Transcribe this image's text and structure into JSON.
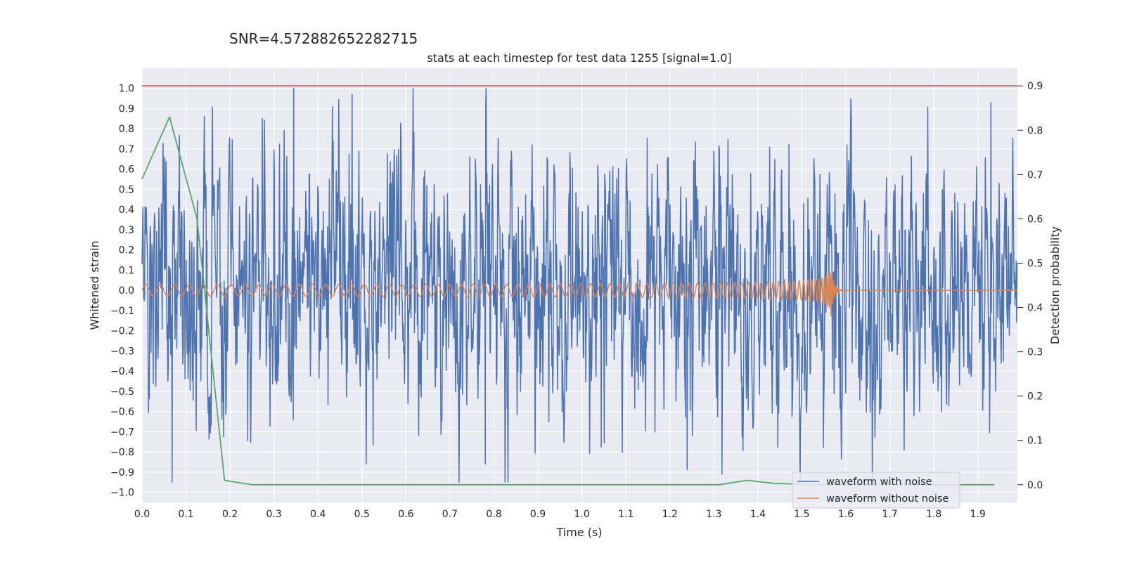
{
  "suptitle": "SNR=4.572882652282715",
  "chart_data": {
    "type": "line",
    "title": "stats at each timestep for test data 1255 [signal=1.0]",
    "xlabel": "Time (s)",
    "ylabel": "Whitened strain",
    "y2label": "Detection probability",
    "xlim": [
      0.0,
      1.99
    ],
    "ylim": [
      -1.05,
      1.1
    ],
    "y2lim": [
      -0.04,
      0.94
    ],
    "xticks": [
      0.0,
      0.1,
      0.2,
      0.3,
      0.4,
      0.5,
      0.6,
      0.7,
      0.8,
      0.9,
      1.0,
      1.1,
      1.2,
      1.3,
      1.4,
      1.5,
      1.6,
      1.7,
      1.8,
      1.9
    ],
    "xtick_labels": [
      "0.0",
      "0.1",
      "0.2",
      "0.3",
      "0.4",
      "0.5",
      "0.6",
      "0.7",
      "0.8",
      "0.9",
      "1.0",
      "1.1",
      "1.2",
      "1.3",
      "1.4",
      "1.5",
      "1.6",
      "1.7",
      "1.8",
      "1.9"
    ],
    "yticks": [
      1.0,
      0.9,
      0.8,
      0.7,
      0.6,
      0.5,
      0.4,
      0.3,
      0.2,
      0.1,
      0.0,
      -0.1,
      -0.2,
      -0.3,
      -0.4,
      -0.5,
      -0.6,
      -0.7,
      -0.8,
      -0.9,
      -1.0
    ],
    "ytick_labels": [
      "1.0",
      "0.9",
      "0.8",
      "0.7",
      "0.6",
      "0.5",
      "0.4",
      "0.3",
      "0.2",
      "0.1",
      "0.0",
      "−0.1",
      "−0.2",
      "−0.3",
      "−0.4",
      "−0.5",
      "−0.6",
      "−0.7",
      "−0.8",
      "−0.9",
      "−1.0"
    ],
    "y2ticks": [
      0.9,
      0.8,
      0.7,
      0.6,
      0.5,
      0.4,
      0.3,
      0.2,
      0.1,
      0.0
    ],
    "y2tick_labels": [
      "0.9",
      "0.8",
      "0.7",
      "0.6",
      "0.5",
      "0.4",
      "0.3",
      "0.2",
      "0.1",
      "0.0"
    ],
    "grid": true,
    "legend_location": "lower right",
    "series": [
      {
        "name": "waveform with noise",
        "axis": "left",
        "color": "#4c72b0",
        "t_start": 0.0,
        "t_end": 2.0,
        "n_samples": 2048,
        "value_range": [
          -0.95,
          1.0
        ],
        "notable_peaks": [
          {
            "x": 0.345,
            "y": 1.0
          },
          {
            "x": 0.478,
            "y": 0.97
          },
          {
            "x": 1.93,
            "y": 0.93
          },
          {
            "x": 0.068,
            "y": -0.95
          },
          {
            "x": 1.318,
            "y": -0.91
          },
          {
            "x": 0.78,
            "y": -0.86
          },
          {
            "x": 0.51,
            "y": -0.86
          }
        ]
      },
      {
        "name": "waveform without noise",
        "axis": "left",
        "color": "#dd8452",
        "t_start": 0.0,
        "t_end": 2.0,
        "merger_time": 1.565,
        "start_amplitude": 0.028,
        "peak_amplitude": 0.16,
        "start_frequency_hz": 30
      },
      {
        "axis": "right",
        "color": "#55a868",
        "x": [
          0.0,
          0.0625,
          0.125,
          0.1875,
          0.25,
          0.3125,
          0.375,
          0.4375,
          0.5,
          0.5625,
          0.625,
          0.6875,
          0.75,
          0.8125,
          0.875,
          0.9375,
          1.0,
          1.0625,
          1.125,
          1.1875,
          1.25,
          1.3125,
          1.375,
          1.4375,
          1.5,
          1.5625,
          1.625,
          1.6875,
          1.75,
          1.8125,
          1.875,
          1.9375
        ],
        "y": [
          0.69,
          0.83,
          0.6,
          0.01,
          0.0,
          0.0,
          0.0,
          0.0,
          0.0,
          0.0,
          0.0,
          0.0,
          0.0,
          0.0,
          0.0,
          0.0,
          0.0,
          0.0,
          0.0,
          0.0,
          0.0,
          0.0,
          0.01,
          0.003,
          0.001,
          0.0,
          0.0,
          0.0,
          0.0,
          0.0,
          0.0,
          0.0
        ]
      },
      {
        "axis": "right",
        "color": "#c44e52",
        "type": "hline",
        "y": 0.9
      }
    ]
  }
}
